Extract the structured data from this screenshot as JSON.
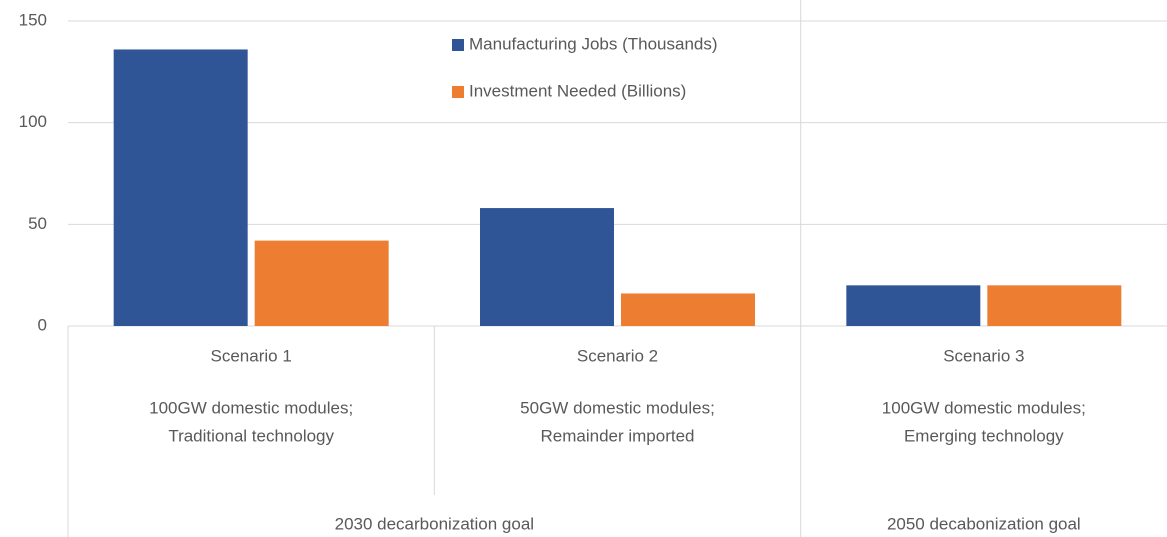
{
  "chart_data": {
    "type": "bar",
    "categories": [
      "Scenario 1",
      "Scenario 2",
      "Scenario 3"
    ],
    "descriptions": [
      [
        "100GW domestic modules;",
        "Traditional technology"
      ],
      [
        "50GW domestic modules;",
        "Remainder imported"
      ],
      [
        "100GW domestic modules;",
        "Emerging technology"
      ]
    ],
    "groups": [
      {
        "name": "2030 decarbonization goal",
        "members": [
          "Scenario 1",
          "Scenario 2"
        ]
      },
      {
        "name": "2050 decabonization goal",
        "members": [
          "Scenario 3"
        ]
      }
    ],
    "series": [
      {
        "name": "Manufacturing Jobs (Thousands)",
        "color": "#2f5597",
        "values": [
          136,
          58,
          20
        ]
      },
      {
        "name": "Investment Needed (Billions)",
        "color": "#ed7d31",
        "values": [
          42,
          16,
          20
        ]
      }
    ],
    "ylim": [
      0,
      150
    ],
    "yticks": [
      0,
      50,
      100,
      150
    ],
    "grid": true
  }
}
